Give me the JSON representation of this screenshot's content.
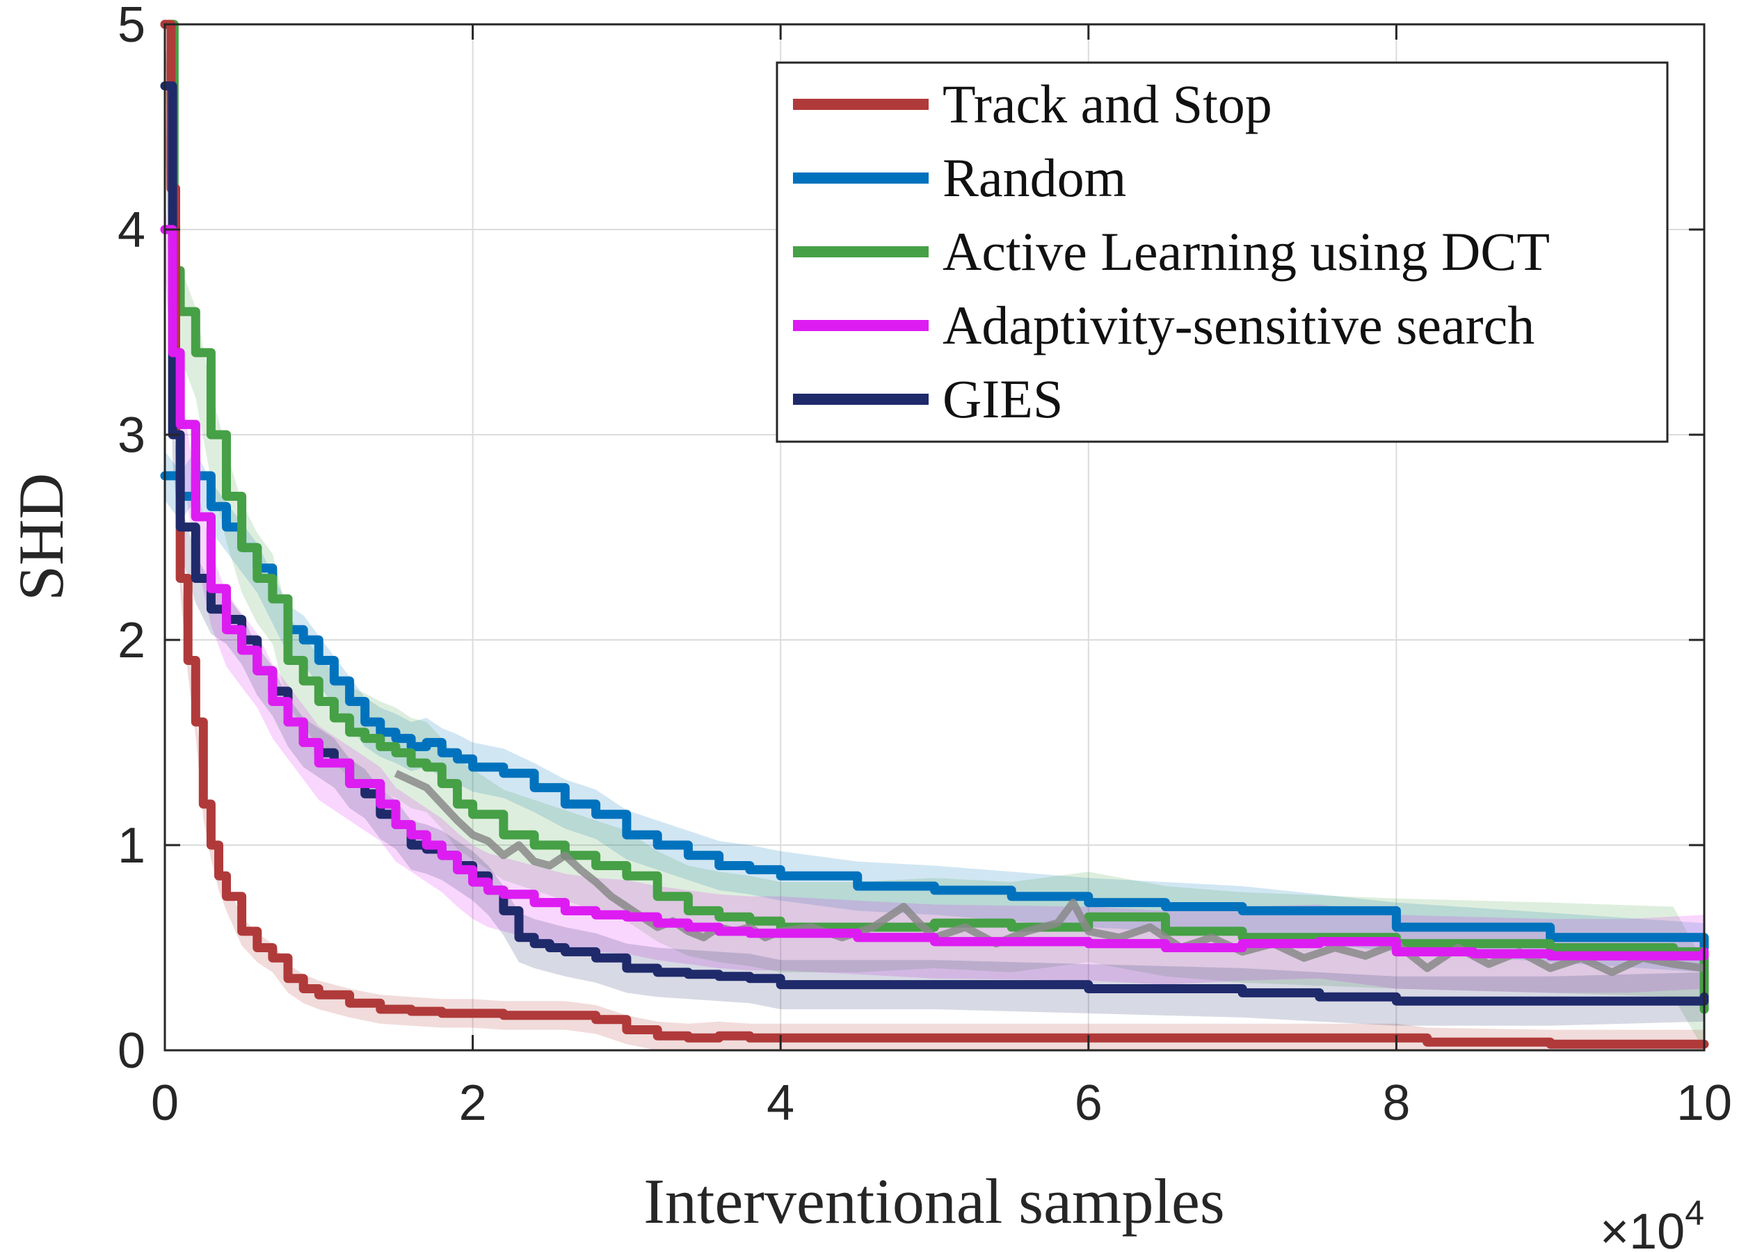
{
  "chart_data": {
    "type": "line",
    "title": "",
    "xlabel": "Interventional samples",
    "ylabel": "SHD",
    "x_multiplier_label": {
      "base": "×10",
      "exponent": "4"
    },
    "xlim": [
      0,
      10
    ],
    "ylim": [
      0,
      5
    ],
    "x_ticks": [
      0,
      2,
      4,
      6,
      8,
      10
    ],
    "x_tick_labels": [
      "0",
      "2",
      "4",
      "6",
      "8",
      "10"
    ],
    "y_ticks": [
      0,
      1,
      2,
      3,
      4,
      5
    ],
    "y_tick_labels": [
      "0",
      "1",
      "2",
      "3",
      "4",
      "5"
    ],
    "grid": true,
    "legend_position": "top-right",
    "series": [
      {
        "name": "Track and Stop",
        "color": "#b03a3a",
        "band": 0.07,
        "points": [
          [
            0,
            5
          ],
          [
            0.04,
            4.2
          ],
          [
            0.07,
            3.0
          ],
          [
            0.1,
            2.3
          ],
          [
            0.15,
            1.9
          ],
          [
            0.2,
            1.6
          ],
          [
            0.25,
            1.2
          ],
          [
            0.3,
            1.0
          ],
          [
            0.35,
            0.85
          ],
          [
            0.4,
            0.75
          ],
          [
            0.5,
            0.58
          ],
          [
            0.6,
            0.5
          ],
          [
            0.7,
            0.45
          ],
          [
            0.8,
            0.35
          ],
          [
            0.9,
            0.3
          ],
          [
            1.0,
            0.27
          ],
          [
            1.2,
            0.23
          ],
          [
            1.4,
            0.2
          ],
          [
            1.6,
            0.19
          ],
          [
            1.8,
            0.18
          ],
          [
            2.0,
            0.18
          ],
          [
            2.2,
            0.17
          ],
          [
            2.4,
            0.17
          ],
          [
            2.6,
            0.17
          ],
          [
            2.8,
            0.15
          ],
          [
            3.0,
            0.1
          ],
          [
            3.2,
            0.07
          ],
          [
            3.4,
            0.06
          ],
          [
            3.6,
            0.07
          ],
          [
            3.8,
            0.06
          ],
          [
            4.0,
            0.06
          ],
          [
            5,
            0.06
          ],
          [
            6,
            0.06
          ],
          [
            7,
            0.06
          ],
          [
            8,
            0.06
          ],
          [
            8.2,
            0.04
          ],
          [
            9,
            0.03
          ],
          [
            10,
            0.03
          ]
        ]
      },
      {
        "name": "Random",
        "color": "#0072bd",
        "band": 0.12,
        "points": [
          [
            0,
            2.8
          ],
          [
            0.1,
            2.7
          ],
          [
            0.2,
            2.8
          ],
          [
            0.3,
            2.65
          ],
          [
            0.4,
            2.55
          ],
          [
            0.5,
            2.45
          ],
          [
            0.6,
            2.35
          ],
          [
            0.7,
            2.2
          ],
          [
            0.8,
            2.05
          ],
          [
            0.9,
            2.0
          ],
          [
            1.0,
            1.9
          ],
          [
            1.1,
            1.8
          ],
          [
            1.2,
            1.7
          ],
          [
            1.3,
            1.6
          ],
          [
            1.4,
            1.55
          ],
          [
            1.5,
            1.52
          ],
          [
            1.6,
            1.48
          ],
          [
            1.7,
            1.5
          ],
          [
            1.8,
            1.45
          ],
          [
            1.9,
            1.42
          ],
          [
            2.0,
            1.38
          ],
          [
            2.2,
            1.35
          ],
          [
            2.4,
            1.28
          ],
          [
            2.6,
            1.2
          ],
          [
            2.8,
            1.15
          ],
          [
            3.0,
            1.05
          ],
          [
            3.2,
            1.0
          ],
          [
            3.4,
            0.95
          ],
          [
            3.6,
            0.9
          ],
          [
            3.8,
            0.88
          ],
          [
            4.0,
            0.85
          ],
          [
            4.5,
            0.8
          ],
          [
            5.0,
            0.78
          ],
          [
            5.5,
            0.75
          ],
          [
            6.0,
            0.72
          ],
          [
            6.5,
            0.7
          ],
          [
            7,
            0.68
          ],
          [
            8,
            0.6
          ],
          [
            9,
            0.55
          ],
          [
            10,
            0.5
          ]
        ]
      },
      {
        "name": "Active Learning using DCT",
        "color": "#46a046",
        "band": 0.22,
        "points": [
          [
            0,
            5
          ],
          [
            0.06,
            3.8
          ],
          [
            0.1,
            3.6
          ],
          [
            0.2,
            3.4
          ],
          [
            0.3,
            3.0
          ],
          [
            0.4,
            2.7
          ],
          [
            0.5,
            2.45
          ],
          [
            0.6,
            2.3
          ],
          [
            0.7,
            2.2
          ],
          [
            0.8,
            1.9
          ],
          [
            0.9,
            1.8
          ],
          [
            1.0,
            1.7
          ],
          [
            1.1,
            1.62
          ],
          [
            1.2,
            1.55
          ],
          [
            1.3,
            1.52
          ],
          [
            1.4,
            1.48
          ],
          [
            1.5,
            1.45
          ],
          [
            1.6,
            1.4
          ],
          [
            1.7,
            1.38
          ],
          [
            1.8,
            1.3
          ],
          [
            1.9,
            1.2
          ],
          [
            2.0,
            1.15
          ],
          [
            2.2,
            1.05
          ],
          [
            2.4,
            1.0
          ],
          [
            2.6,
            0.95
          ],
          [
            2.8,
            0.9
          ],
          [
            3.0,
            0.85
          ],
          [
            3.2,
            0.75
          ],
          [
            3.4,
            0.68
          ],
          [
            3.6,
            0.65
          ],
          [
            3.8,
            0.63
          ],
          [
            4.0,
            0.6
          ],
          [
            4.5,
            0.6
          ],
          [
            5.0,
            0.62
          ],
          [
            5.5,
            0.6
          ],
          [
            6.0,
            0.65
          ],
          [
            6.5,
            0.58
          ],
          [
            7,
            0.55
          ],
          [
            8,
            0.52
          ],
          [
            9,
            0.5
          ],
          [
            9.8,
            0.48
          ],
          [
            10,
            0.2
          ]
        ]
      },
      {
        "name": "Adaptivity-sensitive search",
        "color": "#dd1cf2",
        "band": 0.18,
        "points": [
          [
            0,
            4.0
          ],
          [
            0.05,
            3.4
          ],
          [
            0.1,
            3.05
          ],
          [
            0.2,
            2.6
          ],
          [
            0.3,
            2.25
          ],
          [
            0.4,
            2.05
          ],
          [
            0.5,
            1.95
          ],
          [
            0.6,
            1.85
          ],
          [
            0.7,
            1.7
          ],
          [
            0.8,
            1.6
          ],
          [
            0.9,
            1.5
          ],
          [
            1.0,
            1.4
          ],
          [
            1.2,
            1.3
          ],
          [
            1.4,
            1.2
          ],
          [
            1.5,
            1.1
          ],
          [
            1.6,
            1.05
          ],
          [
            1.7,
            1.0
          ],
          [
            1.8,
            0.95
          ],
          [
            1.9,
            0.88
          ],
          [
            2.0,
            0.82
          ],
          [
            2.1,
            0.78
          ],
          [
            2.2,
            0.76
          ],
          [
            2.4,
            0.72
          ],
          [
            2.6,
            0.68
          ],
          [
            2.8,
            0.66
          ],
          [
            3.0,
            0.65
          ],
          [
            3.2,
            0.62
          ],
          [
            3.4,
            0.6
          ],
          [
            3.6,
            0.58
          ],
          [
            3.8,
            0.57
          ],
          [
            4.0,
            0.57
          ],
          [
            4.5,
            0.55
          ],
          [
            5,
            0.53
          ],
          [
            6,
            0.52
          ],
          [
            6.5,
            0.5
          ],
          [
            7,
            0.52
          ],
          [
            7.5,
            0.53
          ],
          [
            8,
            0.48
          ],
          [
            8.5,
            0.47
          ],
          [
            9,
            0.46
          ],
          [
            9.5,
            0.46
          ],
          [
            10,
            0.48
          ]
        ]
      },
      {
        "name": "GIES",
        "color": "#1f2a6b",
        "band": 0.12,
        "points": [
          [
            0,
            4.7
          ],
          [
            0.05,
            3.0
          ],
          [
            0.1,
            2.55
          ],
          [
            0.2,
            2.3
          ],
          [
            0.3,
            2.15
          ],
          [
            0.4,
            2.1
          ],
          [
            0.5,
            2.0
          ],
          [
            0.6,
            1.85
          ],
          [
            0.7,
            1.75
          ],
          [
            0.8,
            1.6
          ],
          [
            0.9,
            1.5
          ],
          [
            1.0,
            1.45
          ],
          [
            1.1,
            1.4
          ],
          [
            1.2,
            1.3
          ],
          [
            1.3,
            1.25
          ],
          [
            1.4,
            1.15
          ],
          [
            1.5,
            1.1
          ],
          [
            1.6,
            1.0
          ],
          [
            1.7,
            0.98
          ],
          [
            1.8,
            0.95
          ],
          [
            1.9,
            0.9
          ],
          [
            2.0,
            0.85
          ],
          [
            2.1,
            0.78
          ],
          [
            2.2,
            0.68
          ],
          [
            2.3,
            0.55
          ],
          [
            2.4,
            0.52
          ],
          [
            2.5,
            0.5
          ],
          [
            2.6,
            0.48
          ],
          [
            2.8,
            0.45
          ],
          [
            3.0,
            0.4
          ],
          [
            3.2,
            0.38
          ],
          [
            3.4,
            0.37
          ],
          [
            3.6,
            0.36
          ],
          [
            3.8,
            0.35
          ],
          [
            4.0,
            0.32
          ],
          [
            5,
            0.32
          ],
          [
            6,
            0.3
          ],
          [
            7,
            0.28
          ],
          [
            7.5,
            0.26
          ],
          [
            8,
            0.24
          ],
          [
            9,
            0.24
          ],
          [
            10,
            0.26
          ]
        ]
      }
    ],
    "gray_trace": {
      "color": "#8a8a8a",
      "points": [
        [
          1.5,
          1.35
        ],
        [
          1.7,
          1.28
        ],
        [
          1.8,
          1.2
        ],
        [
          1.9,
          1.12
        ],
        [
          2.0,
          1.05
        ],
        [
          2.1,
          1.02
        ],
        [
          2.2,
          0.95
        ],
        [
          2.3,
          1.0
        ],
        [
          2.4,
          0.92
        ],
        [
          2.5,
          0.9
        ],
        [
          2.6,
          0.95
        ],
        [
          2.7,
          0.88
        ],
        [
          2.8,
          0.82
        ],
        [
          2.9,
          0.75
        ],
        [
          3.0,
          0.7
        ],
        [
          3.1,
          0.65
        ],
        [
          3.2,
          0.6
        ],
        [
          3.3,
          0.63
        ],
        [
          3.4,
          0.58
        ],
        [
          3.5,
          0.55
        ],
        [
          3.6,
          0.6
        ],
        [
          3.7,
          0.58
        ],
        [
          3.8,
          0.6
        ],
        [
          3.9,
          0.55
        ],
        [
          4.0,
          0.58
        ],
        [
          4.2,
          0.6
        ],
        [
          4.4,
          0.55
        ],
        [
          4.6,
          0.6
        ],
        [
          4.8,
          0.7
        ],
        [
          4.9,
          0.62
        ],
        [
          5.0,
          0.55
        ],
        [
          5.2,
          0.6
        ],
        [
          5.4,
          0.52
        ],
        [
          5.6,
          0.58
        ],
        [
          5.8,
          0.62
        ],
        [
          5.9,
          0.72
        ],
        [
          6.0,
          0.58
        ],
        [
          6.2,
          0.55
        ],
        [
          6.4,
          0.6
        ],
        [
          6.6,
          0.5
        ],
        [
          6.8,
          0.55
        ],
        [
          7.0,
          0.48
        ],
        [
          7.2,
          0.52
        ],
        [
          7.4,
          0.45
        ],
        [
          7.6,
          0.5
        ],
        [
          7.8,
          0.46
        ],
        [
          8.0,
          0.52
        ],
        [
          8.2,
          0.4
        ],
        [
          8.4,
          0.5
        ],
        [
          8.6,
          0.42
        ],
        [
          8.8,
          0.48
        ],
        [
          9.0,
          0.4
        ],
        [
          9.2,
          0.45
        ],
        [
          9.4,
          0.38
        ],
        [
          9.6,
          0.45
        ],
        [
          9.8,
          0.42
        ],
        [
          10,
          0.4
        ]
      ]
    }
  }
}
